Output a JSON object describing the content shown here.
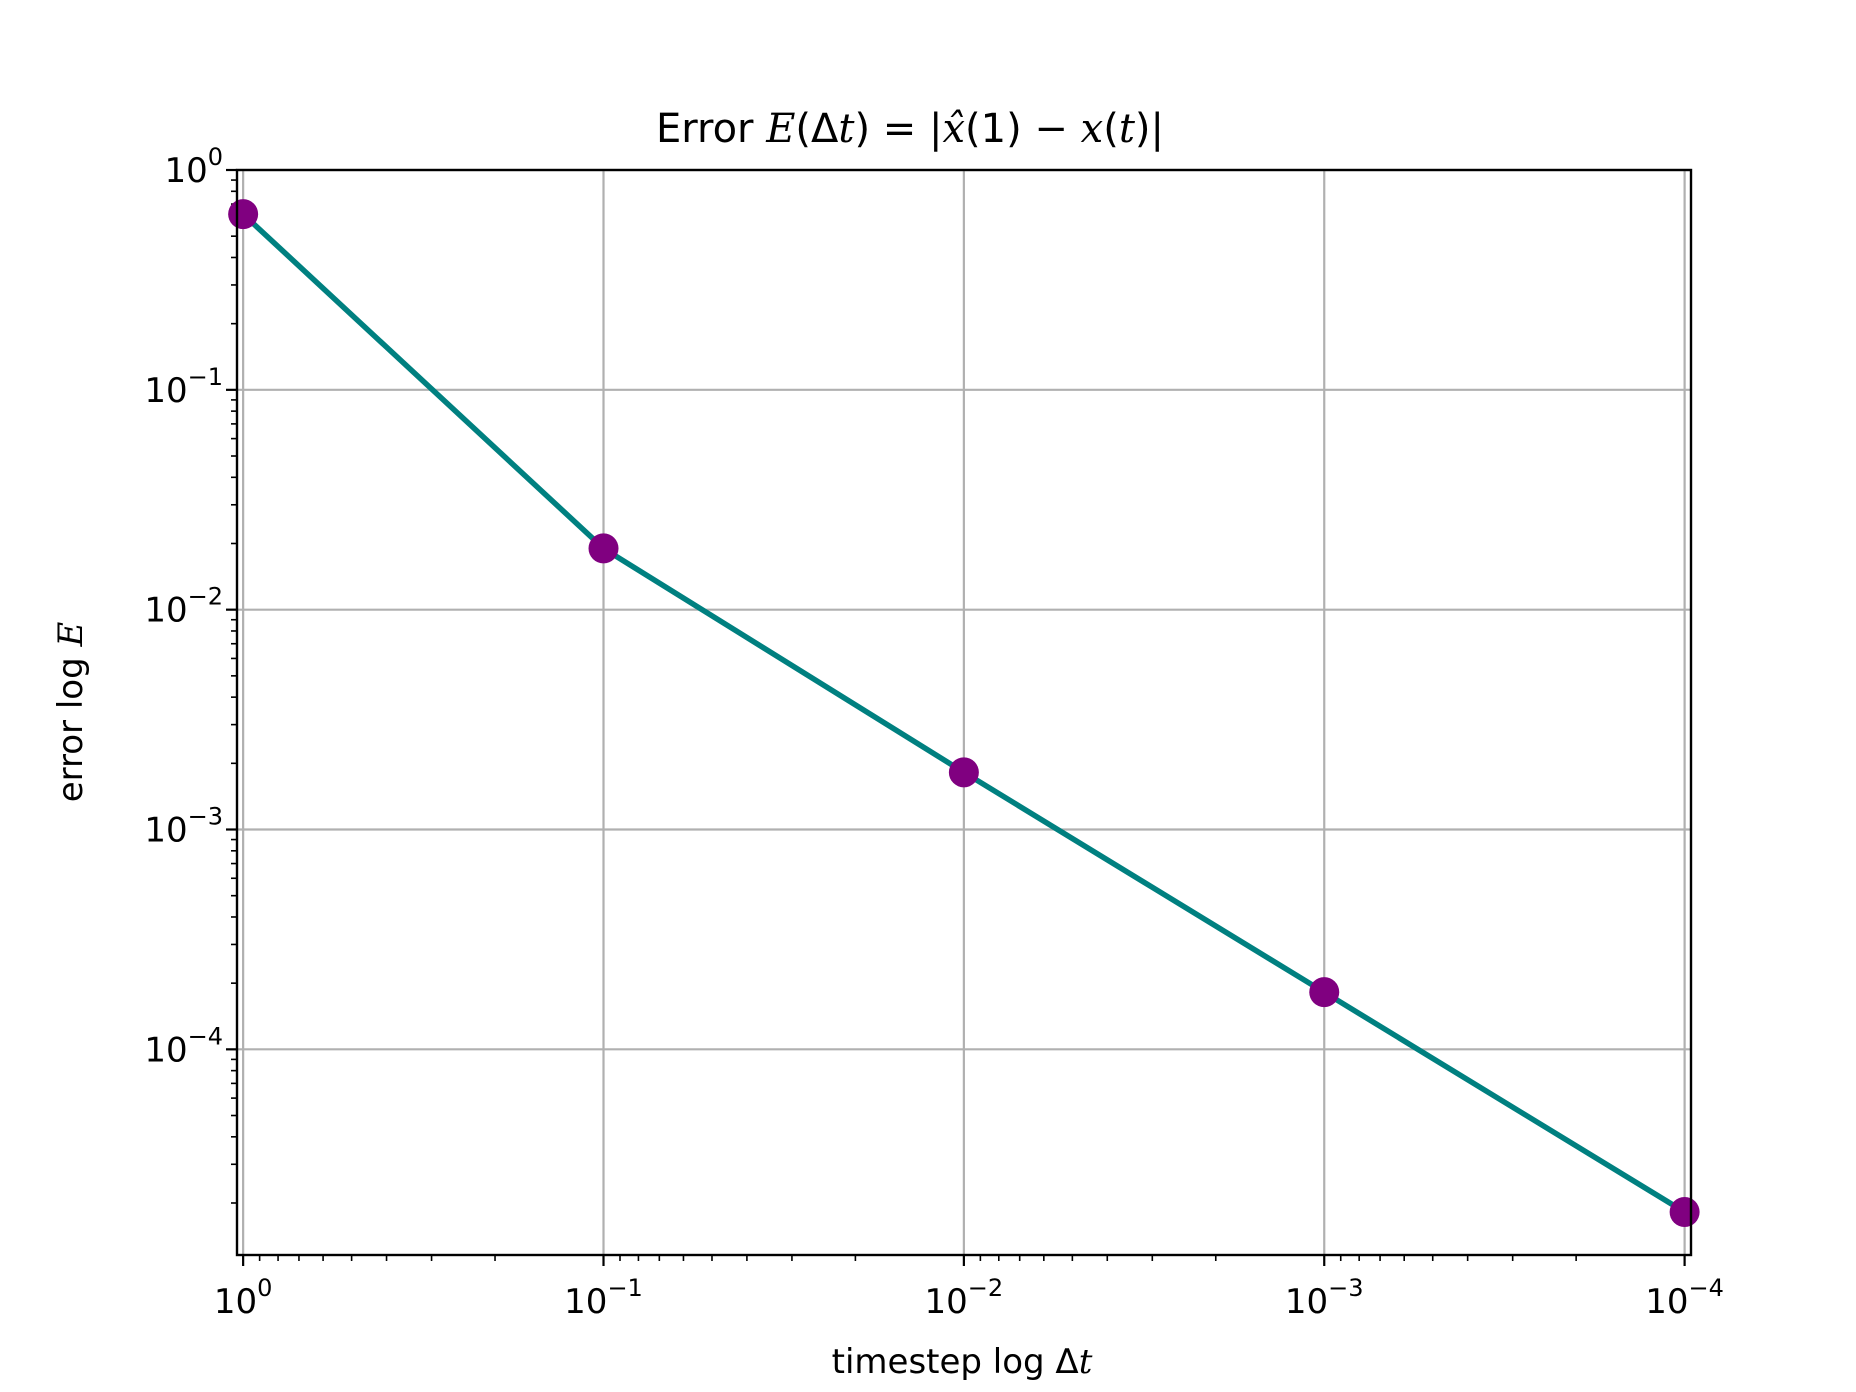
{
  "chart_data": {
    "type": "line",
    "title": {
      "prefix": "Error ",
      "E": "E",
      "open": "(Δ",
      "t1": "t",
      "mid": ") = |",
      "xhat": "x̂",
      "one": "(1) − ",
      "x": "x",
      "lp": "(",
      "t2": "t",
      "end": ")|"
    },
    "xlabel": {
      "text": "timestep log Δ",
      "var": "t"
    },
    "ylabel": {
      "text": "error log ",
      "var": "E"
    },
    "xscale": "log",
    "yscale": "log",
    "x_inverted": true,
    "grid": true,
    "xlim": [
      1.04,
      9.6e-05
    ],
    "ylim": [
      1.16e-05,
      1.0
    ],
    "x_ticks": [
      {
        "value": 1,
        "base": "10",
        "exp": "0"
      },
      {
        "value": 0.1,
        "base": "10",
        "exp": "−1"
      },
      {
        "value": 0.01,
        "base": "10",
        "exp": "−2"
      },
      {
        "value": 0.001,
        "base": "10",
        "exp": "−3"
      },
      {
        "value": 0.0001,
        "base": "10",
        "exp": "−4"
      }
    ],
    "y_ticks": [
      {
        "value": 1,
        "base": "10",
        "exp": "0"
      },
      {
        "value": 0.1,
        "base": "10",
        "exp": "−1"
      },
      {
        "value": 0.01,
        "base": "10",
        "exp": "−2"
      },
      {
        "value": 0.001,
        "base": "10",
        "exp": "−3"
      },
      {
        "value": 0.0001,
        "base": "10",
        "exp": "−4"
      }
    ],
    "series": [
      {
        "name": "error",
        "line_color": "#008080",
        "marker_color": "#800080",
        "x": [
          1,
          0.1,
          0.01,
          0.001,
          0.0001
        ],
        "y": [
          0.63,
          0.019,
          0.00182,
          0.000182,
          1.82e-05
        ]
      }
    ]
  }
}
